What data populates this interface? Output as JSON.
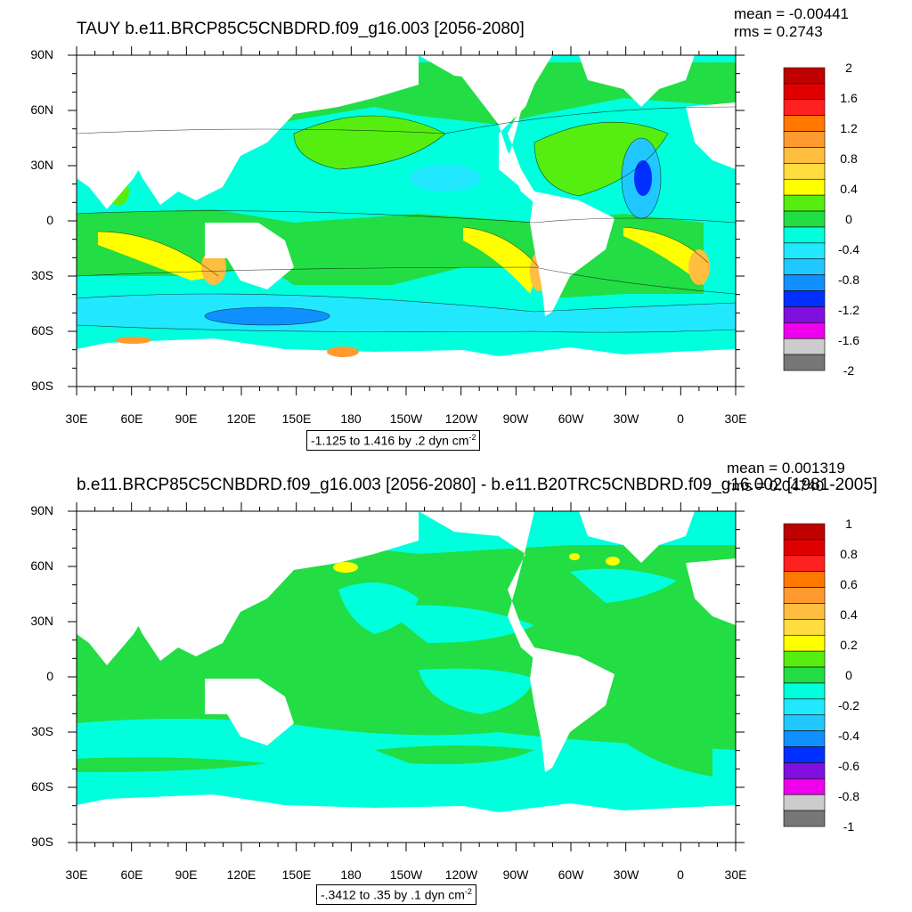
{
  "panels": [
    {
      "title": "TAUY b.e11.BRCP85C5CNBDRD.f09_g16.003 [2056-2080]",
      "mean_label": "mean = -0.00441",
      "rms_label": "rms = 0.2743",
      "info_text": "-1.125 to 1.416 by .2 dyn cm",
      "info_sup": "-2",
      "y_ticks": [
        "90N",
        "60N",
        "30N",
        "0",
        "30S",
        "60S",
        "90S"
      ],
      "x_ticks": [
        "30E",
        "60E",
        "90E",
        "120E",
        "150E",
        "180",
        "150W",
        "120W",
        "90W",
        "60W",
        "30W",
        "0",
        "30E"
      ],
      "colorbar_labels": [
        "2",
        "1.6",
        "1.2",
        "0.8",
        "0.4",
        "0",
        "-0.4",
        "-0.8",
        "-1.2",
        "-1.6",
        "-2"
      ]
    },
    {
      "title": "b.e11.BRCP85C5CNBDRD.f09_g16.003 [2056-2080] - b.e11.B20TRC5CNBDRD.f09_g16.002 [1981-2005]",
      "mean_label": "mean = 0.001319",
      "rms_label": "rms = 0.04740",
      "info_text": "-.3412 to .35 by .1 dyn cm",
      "info_sup": "-2",
      "y_ticks": [
        "90N",
        "60N",
        "30N",
        "0",
        "30S",
        "60S",
        "90S"
      ],
      "x_ticks": [
        "30E",
        "60E",
        "90E",
        "120E",
        "150E",
        "180",
        "150W",
        "120W",
        "90W",
        "60W",
        "30W",
        "0",
        "30E"
      ],
      "colorbar_labels": [
        "1",
        "0.8",
        "0.6",
        "0.4",
        "0.2",
        "0",
        "-0.2",
        "-0.4",
        "-0.6",
        "-0.8",
        "-1"
      ]
    }
  ],
  "colors": {
    "land": "#ffffff",
    "colorbar_bins_top_to_bottom": [
      "#c00000",
      "#e00000",
      "#ff2020",
      "#ff7800",
      "#ff9a30",
      "#ffbe40",
      "#ffdd40",
      "#ffff00",
      "#55ee10",
      "#22dd44",
      "#00ffdd",
      "#22e8ff",
      "#20c8ff",
      "#1090ff",
      "#0030ff",
      "#8010e0",
      "#ee00ee",
      "#cccccc",
      "#777777"
    ]
  }
}
